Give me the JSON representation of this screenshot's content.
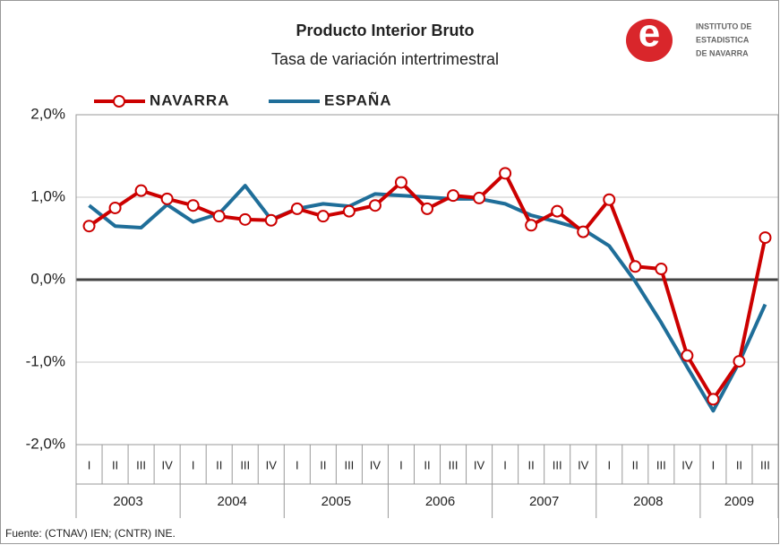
{
  "chart_data": {
    "type": "line",
    "title": "Producto Interior Bruto",
    "subtitle": "Tasa de variación intertrimestral",
    "source": "Fuente: (CTNAV) IEN; (CNTR) INE.",
    "logo": {
      "letter": "e",
      "lines": [
        "INSTITUTO DE",
        "ESTADISTICA",
        "DE NAVARRA"
      ]
    },
    "categories": [
      "I",
      "II",
      "III",
      "IV",
      "I",
      "II",
      "III",
      "IV",
      "I",
      "II",
      "III",
      "IV",
      "I",
      "II",
      "III",
      "IV",
      "I",
      "II",
      "III",
      "IV",
      "I",
      "II",
      "III",
      "IV",
      "I",
      "II",
      "III"
    ],
    "groups": [
      "2003",
      "2004",
      "2005",
      "2006",
      "2007",
      "2008",
      "2009"
    ],
    "series": [
      {
        "name": "NAVARRA",
        "color": "#cc0000",
        "markers": true,
        "values": [
          0.65,
          0.87,
          1.08,
          0.98,
          0.9,
          0.77,
          0.73,
          0.72,
          0.86,
          0.77,
          0.83,
          0.9,
          1.18,
          0.86,
          1.02,
          0.99,
          1.29,
          0.66,
          0.83,
          0.58,
          0.97,
          0.16,
          0.13,
          -0.92,
          -1.45,
          -0.99,
          0.51
        ]
      },
      {
        "name": "ESPAÑA",
        "color": "#1f6e99",
        "markers": false,
        "values": [
          0.9,
          0.65,
          0.63,
          0.91,
          0.7,
          0.8,
          1.14,
          0.73,
          0.86,
          0.92,
          0.89,
          1.04,
          1.02,
          1.0,
          0.98,
          0.98,
          0.92,
          0.78,
          0.7,
          0.61,
          0.41,
          -0.02,
          -0.52,
          -1.06,
          -1.59,
          -1.0,
          -0.3
        ]
      }
    ],
    "ylim": [
      -2,
      2
    ],
    "yticks": [
      {
        "value": -2,
        "label": "-2,0%"
      },
      {
        "value": -1,
        "label": "-1,0%"
      },
      {
        "value": 0,
        "label": "0,0%"
      },
      {
        "value": 1,
        "label": "1,0%"
      },
      {
        "value": 2,
        "label": "2,0%"
      }
    ],
    "grid": true
  }
}
